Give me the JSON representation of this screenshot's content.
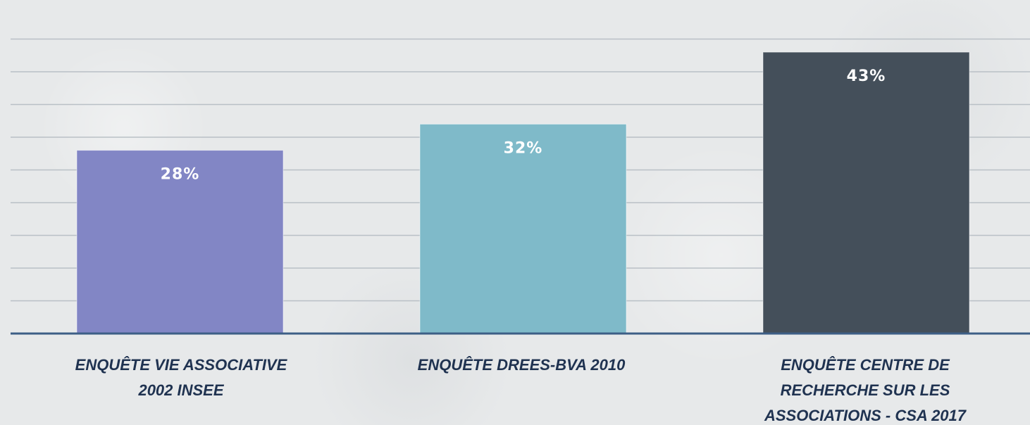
{
  "chart_data": {
    "type": "bar",
    "categories": [
      "ENQUÊTE VIE ASSOCIATIVE 2002 INSEE",
      "ENQUÊTE DREES-BVA 2010",
      "ENQUÊTE CENTRE DE RECHERCHE SUR LES ASSOCIATIONS - CSA 2017"
    ],
    "category_lines": [
      [
        "ENQUÊTE VIE ASSOCIATIVE",
        "2002 INSEE"
      ],
      [
        "ENQUÊTE DREES-BVA 2010"
      ],
      [
        "ENQUÊTE CENTRE DE",
        "RECHERCHE SUR LES",
        "ASSOCIATIONS - CSA 2017"
      ]
    ],
    "values": [
      28,
      32,
      43
    ],
    "data_labels": [
      "28%",
      "32%",
      "43%"
    ],
    "unit": "%",
    "colors": [
      "#8286c5",
      "#7fbac9",
      "#444f5a"
    ],
    "ylim": [
      0,
      50
    ],
    "grid": true,
    "legend": "none",
    "title": "",
    "xlabel": "",
    "ylabel": ""
  },
  "colors": {
    "gridline": "#b9c0c6",
    "axis": "#3d5f86",
    "category_text": "#1f3250",
    "value_text": "#ffffff"
  }
}
